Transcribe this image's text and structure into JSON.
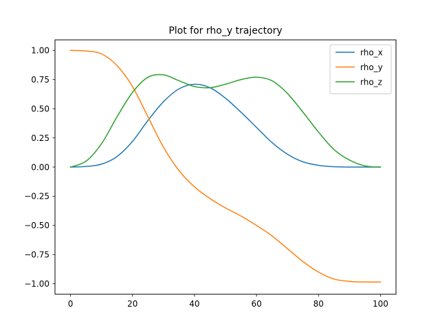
{
  "chart_data": {
    "type": "line",
    "title": "Plot for rho_y trajectory",
    "xlabel": "",
    "ylabel": "",
    "xlim": [
      -5,
      105
    ],
    "ylim": [
      -1.09,
      1.09
    ],
    "xticks": [
      0,
      20,
      40,
      60,
      80,
      100
    ],
    "xtick_labels": [
      "0",
      "20",
      "40",
      "60",
      "80",
      "100"
    ],
    "yticks": [
      -1.0,
      -0.75,
      -0.5,
      -0.25,
      0.0,
      0.25,
      0.5,
      0.75,
      1.0
    ],
    "ytick_labels": [
      "−1.00",
      "−0.75",
      "−0.50",
      "−0.25",
      "0.00",
      "0.25",
      "0.50",
      "0.75",
      "1.00"
    ],
    "grid": false,
    "legend_position": "top-right",
    "series": [
      {
        "name": "rho_x",
        "color": "#1f77b4",
        "x": [
          0,
          5,
          10,
          15,
          20,
          25,
          30,
          35,
          40,
          45,
          50,
          55,
          60,
          65,
          70,
          75,
          80,
          85,
          90,
          95,
          100
        ],
        "y": [
          0.0,
          0.005,
          0.025,
          0.09,
          0.22,
          0.4,
          0.56,
          0.67,
          0.71,
          0.68,
          0.59,
          0.47,
          0.34,
          0.21,
          0.11,
          0.045,
          0.015,
          0.003,
          0.0,
          0.0,
          0.0
        ]
      },
      {
        "name": "rho_y",
        "color": "#ff7f0e",
        "x": [
          0,
          5,
          10,
          15,
          20,
          25,
          30,
          35,
          40,
          45,
          50,
          55,
          60,
          65,
          70,
          75,
          80,
          85,
          90,
          95,
          100
        ],
        "y": [
          1.0,
          0.995,
          0.97,
          0.87,
          0.69,
          0.43,
          0.17,
          -0.03,
          -0.17,
          -0.27,
          -0.35,
          -0.42,
          -0.5,
          -0.59,
          -0.7,
          -0.81,
          -0.9,
          -0.96,
          -0.98,
          -0.985,
          -0.985
        ]
      },
      {
        "name": "rho_z",
        "color": "#2ca02c",
        "x": [
          0,
          5,
          10,
          15,
          20,
          25,
          30,
          35,
          40,
          45,
          50,
          55,
          60,
          65,
          70,
          75,
          80,
          85,
          90,
          95,
          100
        ],
        "y": [
          0.0,
          0.05,
          0.2,
          0.43,
          0.64,
          0.77,
          0.79,
          0.74,
          0.69,
          0.68,
          0.71,
          0.75,
          0.77,
          0.74,
          0.63,
          0.47,
          0.3,
          0.15,
          0.06,
          0.01,
          0.0
        ]
      }
    ]
  }
}
